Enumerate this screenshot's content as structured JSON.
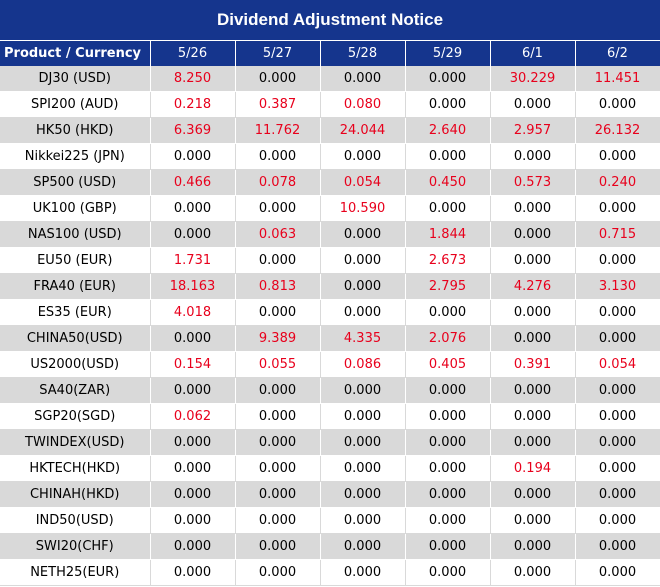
{
  "title": "Dividend Adjustment Notice",
  "colors": {
    "header_bg": "#15358d",
    "positive": "#e8001c",
    "stripe": "#d9d9d9"
  },
  "table": {
    "headers": [
      "Product / Currency",
      "5/26",
      "5/27",
      "5/28",
      "5/29",
      "6/1",
      "6/2"
    ],
    "rows": [
      [
        "DJ30 (USD)",
        "8.250",
        "0.000",
        "0.000",
        "0.000",
        "30.229",
        "11.451"
      ],
      [
        "SPI200 (AUD)",
        "0.218",
        "0.387",
        "0.080",
        "0.000",
        "0.000",
        "0.000"
      ],
      [
        "HK50 (HKD)",
        "6.369",
        "11.762",
        "24.044",
        "2.640",
        "2.957",
        "26.132"
      ],
      [
        "Nikkei225 (JPN)",
        "0.000",
        "0.000",
        "0.000",
        "0.000",
        "0.000",
        "0.000"
      ],
      [
        "SP500 (USD)",
        "0.466",
        "0.078",
        "0.054",
        "0.450",
        "0.573",
        "0.240"
      ],
      [
        "UK100 (GBP)",
        "0.000",
        "0.000",
        "10.590",
        "0.000",
        "0.000",
        "0.000"
      ],
      [
        "NAS100 (USD)",
        "0.000",
        "0.063",
        "0.000",
        "1.844",
        "0.000",
        "0.715"
      ],
      [
        "EU50 (EUR)",
        "1.731",
        "0.000",
        "0.000",
        "2.673",
        "0.000",
        "0.000"
      ],
      [
        "FRA40 (EUR)",
        "18.163",
        "0.813",
        "0.000",
        "2.795",
        "4.276",
        "3.130"
      ],
      [
        "ES35 (EUR)",
        "4.018",
        "0.000",
        "0.000",
        "0.000",
        "0.000",
        "0.000"
      ],
      [
        "CHINA50(USD)",
        "0.000",
        "9.389",
        "4.335",
        "2.076",
        "0.000",
        "0.000"
      ],
      [
        "US2000(USD)",
        "0.154",
        "0.055",
        "0.086",
        "0.405",
        "0.391",
        "0.054"
      ],
      [
        "SA40(ZAR)",
        "0.000",
        "0.000",
        "0.000",
        "0.000",
        "0.000",
        "0.000"
      ],
      [
        "SGP20(SGD)",
        "0.062",
        "0.000",
        "0.000",
        "0.000",
        "0.000",
        "0.000"
      ],
      [
        "TWINDEX(USD)",
        "0.000",
        "0.000",
        "0.000",
        "0.000",
        "0.000",
        "0.000"
      ],
      [
        "HKTECH(HKD)",
        "0.000",
        "0.000",
        "0.000",
        "0.000",
        "0.194",
        "0.000"
      ],
      [
        "CHINAH(HKD)",
        "0.000",
        "0.000",
        "0.000",
        "0.000",
        "0.000",
        "0.000"
      ],
      [
        "IND50(USD)",
        "0.000",
        "0.000",
        "0.000",
        "0.000",
        "0.000",
        "0.000"
      ],
      [
        "SWI20(CHF)",
        "0.000",
        "0.000",
        "0.000",
        "0.000",
        "0.000",
        "0.000"
      ],
      [
        "NETH25(EUR)",
        "0.000",
        "0.000",
        "0.000",
        "0.000",
        "0.000",
        "0.000"
      ]
    ]
  }
}
